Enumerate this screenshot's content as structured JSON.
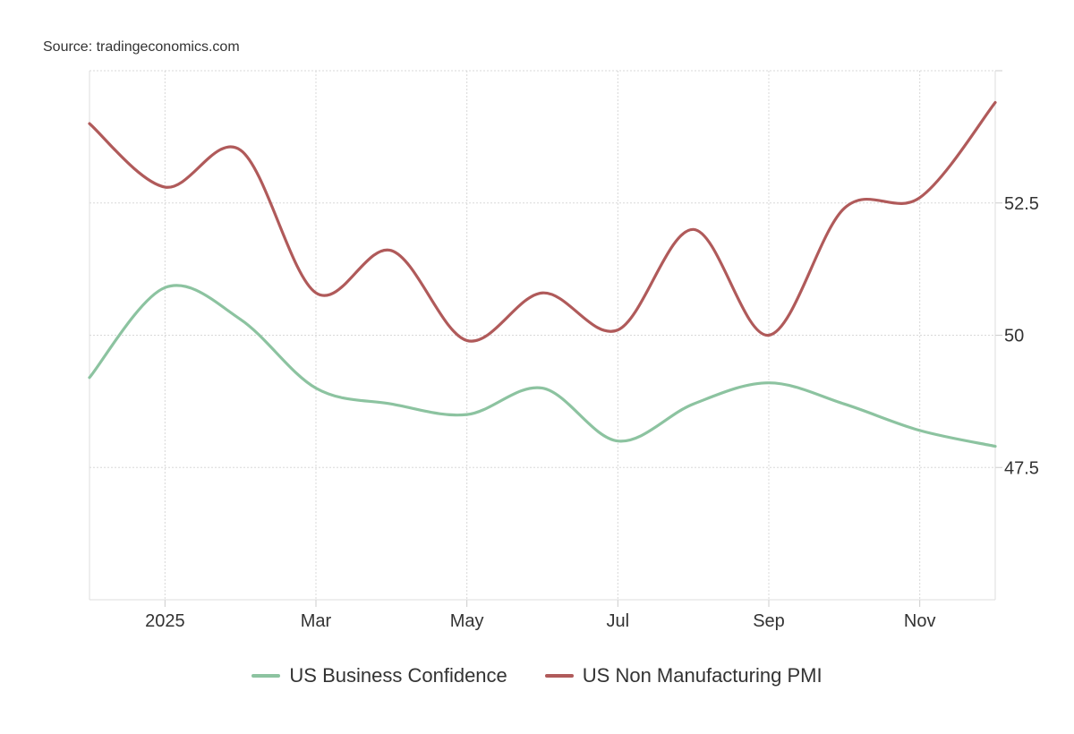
{
  "source": "Source: tradingeconomics.com",
  "chart_data": {
    "type": "line",
    "x": [
      "Dec 2024",
      "Jan 2025",
      "Feb 2025",
      "Mar 2025",
      "Apr 2025",
      "May 2025",
      "Jun 2025",
      "Jul 2025",
      "Aug 2025",
      "Sep 2025",
      "Oct 2025",
      "Nov 2025",
      "Dec 2025"
    ],
    "x_tick_labels": [
      {
        "label": "2025",
        "index": 1
      },
      {
        "label": "Mar",
        "index": 3
      },
      {
        "label": "May",
        "index": 5
      },
      {
        "label": "Jul",
        "index": 7
      },
      {
        "label": "Sep",
        "index": 9
      },
      {
        "label": "Nov",
        "index": 11
      }
    ],
    "y_ticks": [
      "52.5",
      "50",
      "47.5"
    ],
    "y_tick_values": [
      52.5,
      50,
      47.5
    ],
    "ylim": [
      45,
      55
    ],
    "y_axis_side": "right",
    "grid": true,
    "legend_position": "bottom",
    "series": [
      {
        "name": "US Business Confidence",
        "color": "#8cc3a0",
        "values": [
          49.2,
          50.9,
          50.3,
          49.0,
          48.7,
          48.5,
          49.0,
          48.0,
          48.7,
          49.1,
          48.7,
          48.2,
          47.9
        ]
      },
      {
        "name": "US Non Manufacturing PMI",
        "color": "#b05a5a",
        "values": [
          54.0,
          52.8,
          53.5,
          50.8,
          51.6,
          49.9,
          50.8,
          50.1,
          52.0,
          50.0,
          52.4,
          52.6,
          54.4
        ]
      }
    ]
  }
}
